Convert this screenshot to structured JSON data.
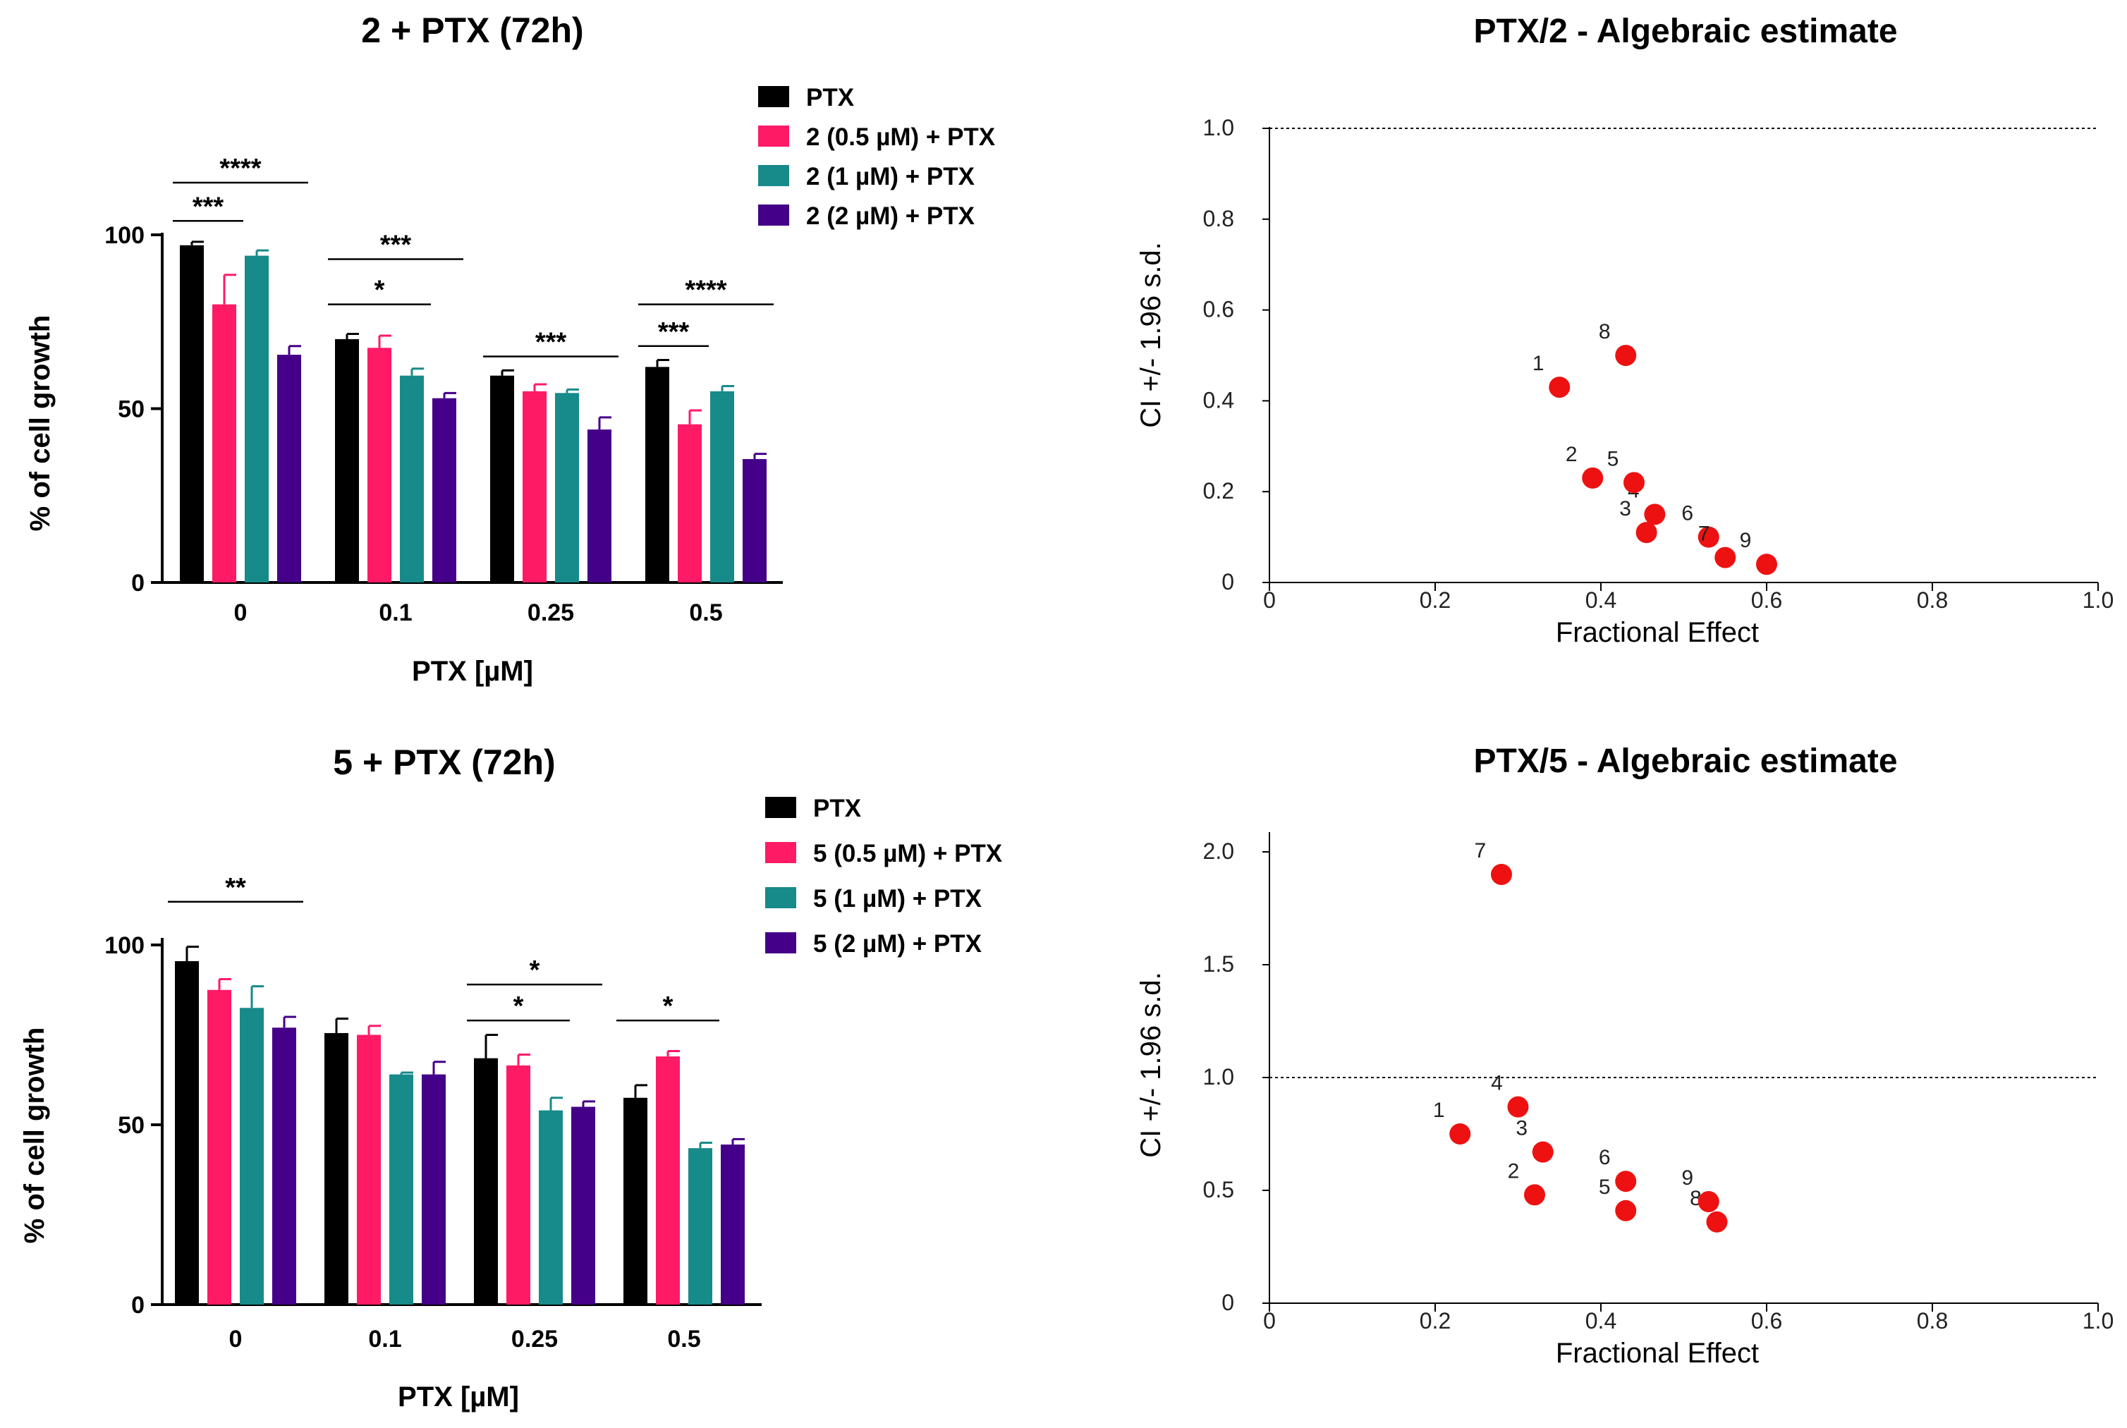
{
  "colors": {
    "PTX": "#000000",
    "c05": "#ff1a66",
    "c1": "#178a8a",
    "c2": "#440088",
    "point": "#ee1111"
  },
  "chart_data": [
    {
      "type": "bar",
      "id": "bar1",
      "title": "2 + PTX (72h)",
      "xlabel": "PTX [µM]",
      "ylabel": "% of cell growth",
      "ylim": [
        0,
        100
      ],
      "yticks": [
        "0",
        "50",
        "100"
      ],
      "categories": [
        "0",
        "0.1",
        "0.25",
        "0.5"
      ],
      "series": [
        {
          "name": "PTX",
          "color_key": "PTX",
          "values": [
            97,
            70,
            59.5,
            62
          ],
          "errors": [
            1,
            1.5,
            1.5,
            2
          ]
        },
        {
          "name": "2 (0.5 µM) + PTX",
          "color_key": "c05",
          "values": [
            80,
            67.5,
            55,
            45.5
          ],
          "errors": [
            8.5,
            3.5,
            2,
            4
          ]
        },
        {
          "name": "2 (1 µM) + PTX",
          "color_key": "c1",
          "values": [
            94,
            59.5,
            54.5,
            55
          ],
          "errors": [
            1.5,
            2,
            1,
            1.5
          ]
        },
        {
          "name": "2 (2 µM) + PTX",
          "color_key": "c2",
          "values": [
            65.5,
            53,
            44,
            35.5
          ],
          "errors": [
            2.5,
            1.5,
            3.5,
            1.5
          ]
        }
      ],
      "significance": [
        {
          "label": "****",
          "category": "0",
          "from": 0,
          "to": 3,
          "level": 115
        },
        {
          "label": "***",
          "category": "0",
          "from": 0,
          "to": 1,
          "level": 104
        },
        {
          "label": "***",
          "category": "0.1",
          "from": 0,
          "to": 3,
          "level": 93
        },
        {
          "label": "*",
          "category": "0.1",
          "from": 0,
          "to": 2,
          "level": 80
        },
        {
          "label": "***",
          "category": "0.25",
          "from": 0,
          "to": 3,
          "level": 65
        },
        {
          "label": "****",
          "category": "0.5",
          "from": 0,
          "to": 3,
          "level": 80
        },
        {
          "label": "***",
          "category": "0.5",
          "from": 0,
          "to": 1,
          "level": 68
        }
      ]
    },
    {
      "type": "bar",
      "id": "bar2",
      "title": "5 + PTX (72h)",
      "xlabel": "PTX [µM]",
      "ylabel": "% of cell growth",
      "ylim": [
        0,
        100
      ],
      "yticks": [
        "0",
        "50",
        "100"
      ],
      "categories": [
        "0",
        "0.1",
        "0.25",
        "0.5"
      ],
      "series": [
        {
          "name": "PTX",
          "color_key": "PTX",
          "values": [
            95.5,
            75.5,
            68.5,
            57.5
          ],
          "errors": [
            4,
            4,
            6.5,
            3.5
          ]
        },
        {
          "name": "5 (0.5 µM) + PTX",
          "color_key": "c05",
          "values": [
            87.5,
            75,
            66.5,
            69
          ],
          "errors": [
            3,
            2.5,
            3,
            1.5
          ]
        },
        {
          "name": "5 (1 µM) + PTX",
          "color_key": "c1",
          "values": [
            82.5,
            64,
            54,
            43.5
          ],
          "errors": [
            6,
            0.5,
            3.5,
            1.5
          ]
        },
        {
          "name": "5 (2 µM) + PTX",
          "color_key": "c2",
          "values": [
            77,
            64,
            55,
            44.5
          ],
          "errors": [
            3,
            3.5,
            1.5,
            1.5
          ]
        }
      ],
      "significance": [
        {
          "label": "**",
          "category": "0",
          "from": 0,
          "to": 3,
          "level": 112
        },
        {
          "label": "*",
          "category": "0.25",
          "from": 0,
          "to": 3,
          "level": 89
        },
        {
          "label": "*",
          "category": "0.25",
          "from": 0,
          "to": 2,
          "level": 79
        },
        {
          "label": "*",
          "category": "0.5",
          "from": 0,
          "to": 2,
          "level": 79
        }
      ]
    },
    {
      "type": "scatter",
      "id": "ci1",
      "title": "PTX/2 - Algebraic estimate",
      "xlabel": "Fractional Effect",
      "ylabel": "CI +/- 1.96 s.d.",
      "xlim": [
        0,
        1
      ],
      "ylim": [
        0,
        1
      ],
      "xticks": [
        "0",
        "0.2",
        "0.4",
        "0.6",
        "0.8",
        "1.0"
      ],
      "yticks": [
        "0",
        "0.2",
        "0.4",
        "0.6",
        "0.8",
        "1.0"
      ],
      "reference_line": 1.0,
      "points": [
        {
          "label": "1",
          "x": 0.35,
          "y": 0.43
        },
        {
          "label": "2",
          "x": 0.39,
          "y": 0.23
        },
        {
          "label": "3",
          "x": 0.455,
          "y": 0.11
        },
        {
          "label": "4",
          "x": 0.465,
          "y": 0.15
        },
        {
          "label": "5",
          "x": 0.44,
          "y": 0.22
        },
        {
          "label": "6",
          "x": 0.53,
          "y": 0.1
        },
        {
          "label": "7",
          "x": 0.55,
          "y": 0.055
        },
        {
          "label": "8",
          "x": 0.43,
          "y": 0.5
        },
        {
          "label": "9",
          "x": 0.6,
          "y": 0.04
        }
      ]
    },
    {
      "type": "scatter",
      "id": "ci2",
      "title": "PTX/5 - Algebraic estimate",
      "xlabel": "Fractional Effect",
      "ylabel": "CI +/- 1.96 s.d.",
      "xlim": [
        0,
        1
      ],
      "ylim": [
        0,
        2
      ],
      "xticks": [
        "0",
        "0.2",
        "0.4",
        "0.6",
        "0.8",
        "1.0"
      ],
      "yticks": [
        "0",
        "0.5",
        "1.0",
        "1.5",
        "2.0"
      ],
      "reference_line": 1.0,
      "points": [
        {
          "label": "1",
          "x": 0.23,
          "y": 0.75
        },
        {
          "label": "2",
          "x": 0.32,
          "y": 0.48
        },
        {
          "label": "3",
          "x": 0.33,
          "y": 0.67
        },
        {
          "label": "4",
          "x": 0.3,
          "y": 0.87
        },
        {
          "label": "5",
          "x": 0.43,
          "y": 0.41
        },
        {
          "label": "6",
          "x": 0.43,
          "y": 0.54
        },
        {
          "label": "7",
          "x": 0.28,
          "y": 1.9
        },
        {
          "label": "8",
          "x": 0.54,
          "y": 0.36
        },
        {
          "label": "9",
          "x": 0.53,
          "y": 0.45
        }
      ]
    }
  ]
}
